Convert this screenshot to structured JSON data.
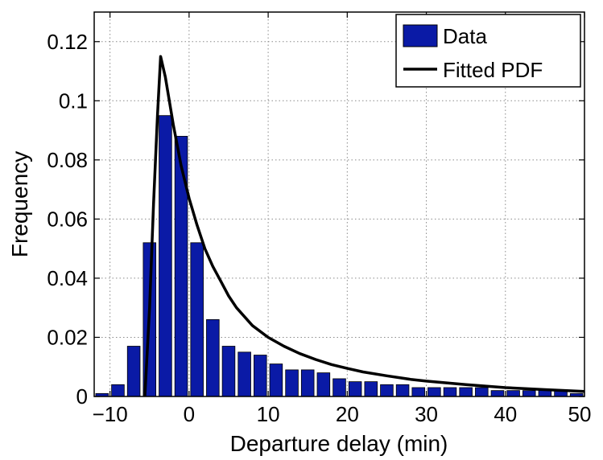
{
  "chart_data": {
    "type": "bar",
    "xlabel": "Departure delay (min)",
    "ylabel": "Frequency",
    "xlim": [
      -12,
      50
    ],
    "ylim": [
      0,
      0.13
    ],
    "grid": true,
    "legend_position": "top-right",
    "x_ticks": [
      -10,
      0,
      10,
      20,
      30,
      40,
      50
    ],
    "x_tick_labels": [
      "−10",
      "0",
      "10",
      "20",
      "30",
      "40",
      "50"
    ],
    "y_ticks": [
      0,
      0.02,
      0.04,
      0.06,
      0.08,
      0.1,
      0.12
    ],
    "y_tick_labels": [
      "0",
      "0.02",
      "0.04",
      "0.06",
      "0.08",
      "0.1",
      "0.12"
    ],
    "bin_width": 2,
    "bar_fraction": 0.8,
    "series": [
      {
        "name": "Data",
        "kind": "bar",
        "color": "#0a1aa6",
        "x": [
          -11,
          -9,
          -7,
          -5,
          -3,
          -1,
          1,
          3,
          5,
          7,
          9,
          11,
          13,
          15,
          17,
          19,
          21,
          23,
          25,
          27,
          29,
          31,
          33,
          35,
          37,
          39,
          41,
          43,
          45,
          47,
          49
        ],
        "values": [
          0.001,
          0.004,
          0.017,
          0.052,
          0.095,
          0.088,
          0.052,
          0.026,
          0.017,
          0.015,
          0.014,
          0.011,
          0.009,
          0.009,
          0.008,
          0.006,
          0.005,
          0.005,
          0.004,
          0.004,
          0.003,
          0.003,
          0.003,
          0.003,
          0.003,
          0.002,
          0.002,
          0.002,
          0.002,
          0.002,
          0.001
        ]
      },
      {
        "name": "Fitted PDF",
        "kind": "line",
        "color": "#000000",
        "x": [
          -5.6,
          -5,
          -4.5,
          -4,
          -3.6,
          -3,
          -2.5,
          -2,
          -1.5,
          -1,
          0,
          1,
          2,
          3,
          4,
          5,
          6,
          7,
          8,
          10,
          12,
          14,
          16,
          18,
          20,
          22,
          25,
          28,
          30,
          35,
          40,
          45,
          50
        ],
        "values": [
          0,
          0.03,
          0.065,
          0.095,
          0.115,
          0.108,
          0.1,
          0.092,
          0.085,
          0.078,
          0.067,
          0.058,
          0.05,
          0.044,
          0.039,
          0.034,
          0.03,
          0.027,
          0.024,
          0.02,
          0.017,
          0.0145,
          0.0125,
          0.0108,
          0.0095,
          0.0083,
          0.007,
          0.0058,
          0.0052,
          0.004,
          0.003,
          0.0023,
          0.0017
        ]
      }
    ]
  }
}
